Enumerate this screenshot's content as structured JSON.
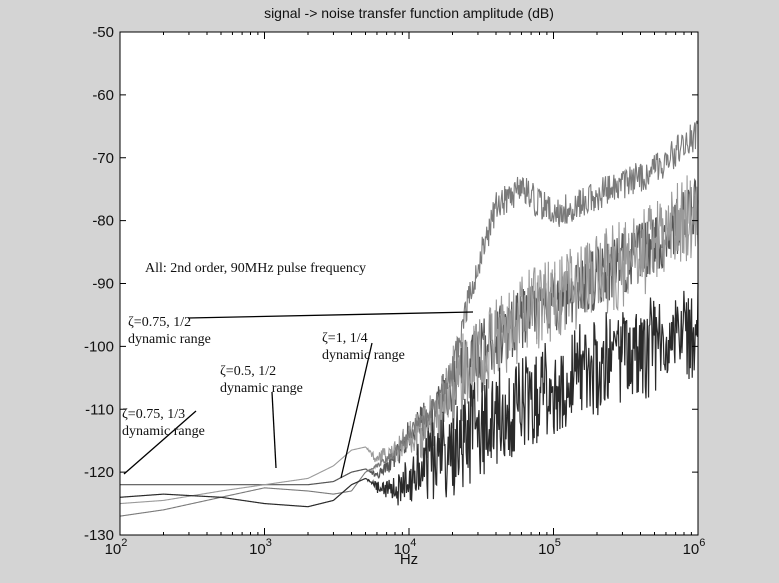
{
  "chart_data": {
    "type": "line",
    "title": "signal -> noise transfer function amplitude (dB)",
    "xlabel": "Hz",
    "ylabel": "",
    "xscale": "log",
    "xlim": [
      100,
      1000000
    ],
    "ylim": [
      -130,
      -50
    ],
    "grid": false,
    "x_tick_labels": [
      "10",
      "10",
      "10",
      "10",
      "10"
    ],
    "x_tick_exponents": [
      "2",
      "3",
      "4",
      "5",
      "6"
    ],
    "x_tick_values": [
      100,
      1000,
      10000,
      100000,
      1000000
    ],
    "y_ticks": [
      -50,
      -60,
      -70,
      -80,
      -90,
      -100,
      -110,
      -120,
      -130
    ],
    "colors": {
      "series_dark": "#2a2a2a",
      "series_mid": "#555555",
      "series_light": "#9a9a9a",
      "series_lighter": "#7a7a7a",
      "plot_background": "#ffffff",
      "figure_background": "#d4d4d4"
    },
    "series": [
      {
        "line": "dark-gray",
        "x": [
          100,
          200,
          500,
          1000,
          2000,
          3000,
          4000,
          5000,
          6000,
          8000,
          10000,
          15000,
          20000,
          30000,
          50000,
          100000,
          200000,
          500000,
          1000000
        ],
        "y": [
          -122,
          -122,
          -122,
          -122,
          -122,
          -121.5,
          -120,
          -119.5,
          -120.5,
          -118,
          -114,
          -111,
          -106,
          -101,
          -97,
          -93,
          -89,
          -84,
          -78
        ],
        "noise_amplitude": 5
      },
      {
        "line": "light-gray",
        "x": [
          100,
          200,
          500,
          1000,
          2000,
          3000,
          4000,
          5000,
          6000,
          8000,
          10000,
          15000,
          20000,
          30000,
          50000,
          100000,
          200000,
          500000,
          1000000
        ],
        "y": [
          -125,
          -124.5,
          -123,
          -122,
          -121,
          -119,
          -116.5,
          -116,
          -118,
          -117,
          -115,
          -112,
          -107,
          -102,
          -97,
          -92,
          -89,
          -84,
          -78
        ],
        "noise_amplitude": 7
      },
      {
        "line": "medium-gray",
        "x": [
          100,
          200,
          500,
          1000,
          2000,
          3000,
          4000,
          5000,
          6000,
          8000,
          10000,
          15000,
          20000,
          25000,
          30000,
          40000,
          60000,
          100000,
          200000,
          500000,
          1000000
        ],
        "y": [
          -127,
          -126,
          -124,
          -122.5,
          -123,
          -123.5,
          -123,
          -120,
          -119,
          -117,
          -114,
          -110,
          -104,
          -94,
          -87,
          -78,
          -75,
          -79,
          -76,
          -72,
          -66
        ],
        "noise_amplitude": 2.5
      },
      {
        "line": "black",
        "x": [
          100,
          200,
          500,
          1000,
          2000,
          3000,
          4000,
          5000,
          6000,
          8000,
          10000,
          15000,
          20000,
          30000,
          50000,
          100000,
          200000,
          500000,
          1000000
        ],
        "y": [
          -124,
          -123.5,
          -124,
          -125,
          -125.5,
          -124.5,
          -122,
          -121,
          -122.5,
          -123,
          -121,
          -118,
          -116,
          -113,
          -110,
          -106,
          -103,
          -100,
          -98
        ],
        "noise_amplitude": 8
      }
    ],
    "annotations": [
      {
        "text": "All: 2nd order, 90MHz pulse frequency",
        "lines": [
          "All: 2nd order, 90MHz pulse frequency"
        ]
      },
      {
        "text": "ζ=0.75, 1/2 dynamic range",
        "lines": [
          "ζ=0.75, 1/2",
          "dynamic range"
        ]
      },
      {
        "text": "ζ=1, 1/4 dynamic range",
        "lines": [
          "ζ=1, 1/4",
          "dynamic range"
        ]
      },
      {
        "text": "ζ=0.5, 1/2 dynamic range",
        "lines": [
          "ζ=0.5, 1/2",
          "dynamic range"
        ]
      },
      {
        "text": "ζ=0.75, 1/3 dynamic range",
        "lines": [
          "ζ=0.75, 1/3",
          "dynamic range"
        ]
      }
    ]
  }
}
